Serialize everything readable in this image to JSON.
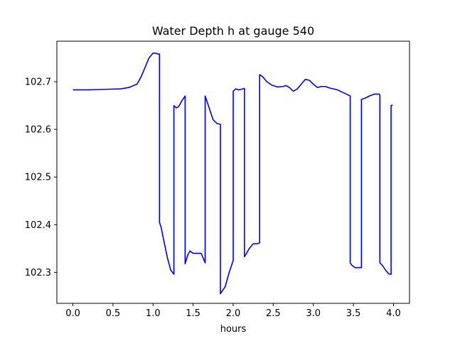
{
  "chart_data": {
    "type": "line",
    "title": "Water Depth h at gauge 540",
    "xlabel": "hours",
    "ylabel": "",
    "xlim": [
      -0.2,
      4.2
    ],
    "ylim": [
      102.235,
      102.785
    ],
    "xticks": [
      0.0,
      0.5,
      1.0,
      1.5,
      2.0,
      2.5,
      3.0,
      3.5,
      4.0
    ],
    "xtick_labels": [
      "0.0",
      "0.5",
      "1.0",
      "1.5",
      "2.0",
      "2.5",
      "3.0",
      "3.5",
      "4.0"
    ],
    "yticks": [
      102.3,
      102.4,
      102.5,
      102.6,
      102.7
    ],
    "ytick_labels": [
      "102.3",
      "102.4",
      "102.5",
      "102.6",
      "102.7"
    ],
    "grid": false,
    "series": [
      {
        "color": "#0000ff",
        "x": [
          0.0,
          0.2,
          0.4,
          0.6,
          0.7,
          0.8,
          0.85,
          0.9,
          0.95,
          1.0,
          1.03,
          1.06,
          1.08,
          1.08,
          1.1,
          1.13,
          1.18,
          1.22,
          1.26,
          1.26,
          1.29,
          1.32,
          1.36,
          1.4,
          1.4,
          1.43,
          1.46,
          1.5,
          1.55,
          1.6,
          1.65,
          1.65,
          1.7,
          1.75,
          1.8,
          1.84,
          1.84,
          1.86,
          1.9,
          1.95,
          2.0,
          2.0,
          2.03,
          2.07,
          2.1,
          2.14,
          2.14,
          2.16,
          2.2,
          2.25,
          2.3,
          2.33,
          2.33,
          2.37,
          2.42,
          2.48,
          2.55,
          2.62,
          2.66,
          2.7,
          2.75,
          2.8,
          2.85,
          2.9,
          2.95,
          3.0,
          3.05,
          3.1,
          3.15,
          3.2,
          3.3,
          3.4,
          3.46,
          3.46,
          3.48,
          3.52,
          3.56,
          3.6,
          3.6,
          3.64,
          3.7,
          3.76,
          3.82,
          3.83,
          3.83,
          3.86,
          3.9,
          3.94,
          3.97,
          3.97,
          3.99
        ],
        "y": [
          102.683,
          102.683,
          102.684,
          102.685,
          102.688,
          102.695,
          102.71,
          102.73,
          102.75,
          102.76,
          102.76,
          102.758,
          102.758,
          102.405,
          102.395,
          102.37,
          102.33,
          102.305,
          102.296,
          102.65,
          102.645,
          102.648,
          102.66,
          102.67,
          102.318,
          102.335,
          102.345,
          102.34,
          102.34,
          102.34,
          102.32,
          102.67,
          102.645,
          102.62,
          102.612,
          102.611,
          102.255,
          102.26,
          102.27,
          102.3,
          102.325,
          102.68,
          102.685,
          102.683,
          102.684,
          102.686,
          102.333,
          102.338,
          102.35,
          102.36,
          102.36,
          102.362,
          102.715,
          102.71,
          102.7,
          102.693,
          102.689,
          102.69,
          102.692,
          102.688,
          102.68,
          102.685,
          102.695,
          102.705,
          102.703,
          102.695,
          102.688,
          102.69,
          102.69,
          102.687,
          102.683,
          102.675,
          102.67,
          102.32,
          102.315,
          102.31,
          102.31,
          102.31,
          102.663,
          102.665,
          102.67,
          102.674,
          102.674,
          102.672,
          102.32,
          102.315,
          102.305,
          102.297,
          102.296,
          102.65,
          102.651
        ]
      }
    ]
  }
}
